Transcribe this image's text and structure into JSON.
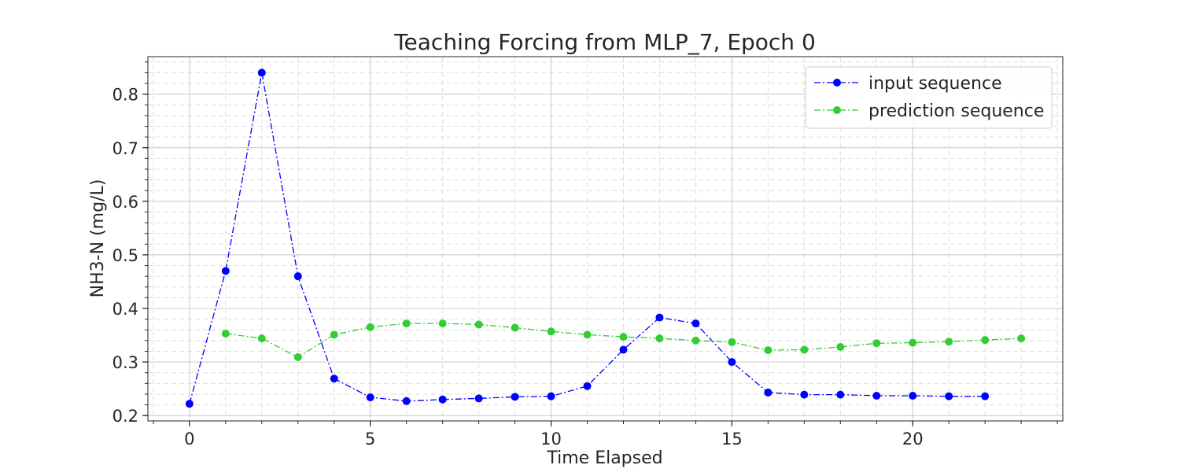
{
  "chart_data": {
    "type": "line",
    "title": "Teaching Forcing from MLP_7, Epoch 0",
    "xlabel": "Time Elapsed",
    "ylabel": "NH3-N (mg/L)",
    "xlim": [
      -1.15,
      24.15
    ],
    "ylim": [
      0.19,
      0.87
    ],
    "xticks": [
      0,
      5,
      10,
      15,
      20
    ],
    "yticks": [
      0.2,
      0.3,
      0.4,
      0.5,
      0.6,
      0.7,
      0.8
    ],
    "x_minor_step": 1,
    "y_minor_step": 0.02,
    "grid": true,
    "legend_position": "top-right",
    "series": [
      {
        "name": "input sequence",
        "color": "#0000ff",
        "marker": "circle",
        "line_style": "dash-dot",
        "x": [
          0,
          1,
          2,
          3,
          4,
          5,
          6,
          7,
          8,
          9,
          10,
          11,
          12,
          13,
          14,
          15,
          16,
          17,
          18,
          19,
          20,
          21,
          22
        ],
        "values": [
          0.222,
          0.47,
          0.84,
          0.46,
          0.269,
          0.234,
          0.227,
          0.23,
          0.232,
          0.235,
          0.236,
          0.255,
          0.323,
          0.383,
          0.372,
          0.3,
          0.243,
          0.239,
          0.239,
          0.237,
          0.237,
          0.236,
          0.236
        ]
      },
      {
        "name": "prediction sequence",
        "color": "#32cd32",
        "marker": "circle",
        "line_style": "dash-dot",
        "x": [
          1,
          2,
          3,
          4,
          5,
          6,
          7,
          8,
          9,
          10,
          11,
          12,
          13,
          14,
          15,
          16,
          17,
          18,
          19,
          20,
          21,
          22,
          23
        ],
        "values": [
          0.353,
          0.344,
          0.309,
          0.351,
          0.365,
          0.372,
          0.372,
          0.37,
          0.364,
          0.357,
          0.351,
          0.347,
          0.344,
          0.34,
          0.337,
          0.322,
          0.323,
          0.328,
          0.335,
          0.336,
          0.338,
          0.341,
          0.344
        ]
      }
    ]
  }
}
